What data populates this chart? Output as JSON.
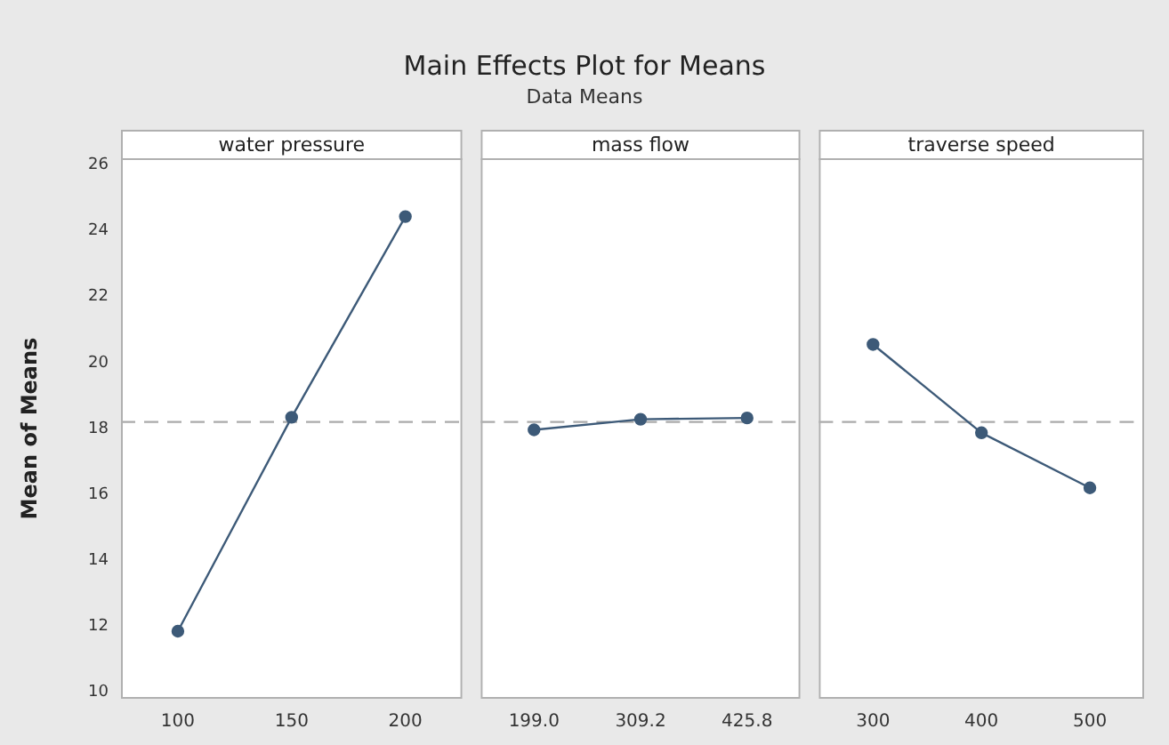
{
  "chart_data": [
    {
      "type": "other",
      "title": "Main Effects Plot for Means",
      "subtitle": "Data Means"
    },
    {
      "type": "line",
      "xlabel": "water pressure",
      "ylabel": "Mean of Means",
      "categories": [
        "100",
        "150",
        "200"
      ],
      "series": [
        {
          "color": "#3d5a78",
          "values": [
            11.85,
            18.34,
            24.43
          ]
        }
      ],
      "ylim": [
        9.8,
        26.2
      ],
      "yticks": [
        10,
        12,
        14,
        16,
        18,
        20,
        22,
        24,
        26
      ],
      "grid": false,
      "legend": false,
      "marker": "circle",
      "line_style": "solid",
      "ref_lines": [
        {
          "axis": "y",
          "value": 18.2,
          "color": "#aaaaaa",
          "line_style": "dashed"
        }
      ]
    },
    {
      "type": "line",
      "xlabel": "mass flow",
      "categories": [
        "199.0",
        "309.2",
        "425.8"
      ],
      "series": [
        {
          "color": "#3d5a78",
          "values": [
            17.96,
            18.28,
            18.32
          ]
        }
      ],
      "ylim": [
        9.8,
        26.2
      ],
      "yticks": [
        10,
        12,
        14,
        16,
        18,
        20,
        22,
        24,
        26
      ],
      "tick_labels": "x",
      "grid": false,
      "legend": false,
      "marker": "circle",
      "line_style": "solid",
      "ref_lines": [
        {
          "axis": "y",
          "value": 18.2,
          "color": "#aaaaaa",
          "line_style": "dashed"
        }
      ]
    },
    {
      "type": "line",
      "xlabel": "traverse speed",
      "categories": [
        "300",
        "400",
        "500"
      ],
      "series": [
        {
          "color": "#3d5a78",
          "values": [
            20.55,
            17.87,
            16.2
          ]
        }
      ],
      "ylim": [
        9.8,
        26.2
      ],
      "yticks": [
        10,
        12,
        14,
        16,
        18,
        20,
        22,
        24,
        26
      ],
      "tick_labels": "x",
      "grid": false,
      "legend": false,
      "marker": "circle",
      "line_style": "solid",
      "ref_lines": [
        {
          "axis": "y",
          "value": 18.2,
          "color": "#aaaaaa",
          "line_style": "dashed"
        }
      ]
    }
  ]
}
